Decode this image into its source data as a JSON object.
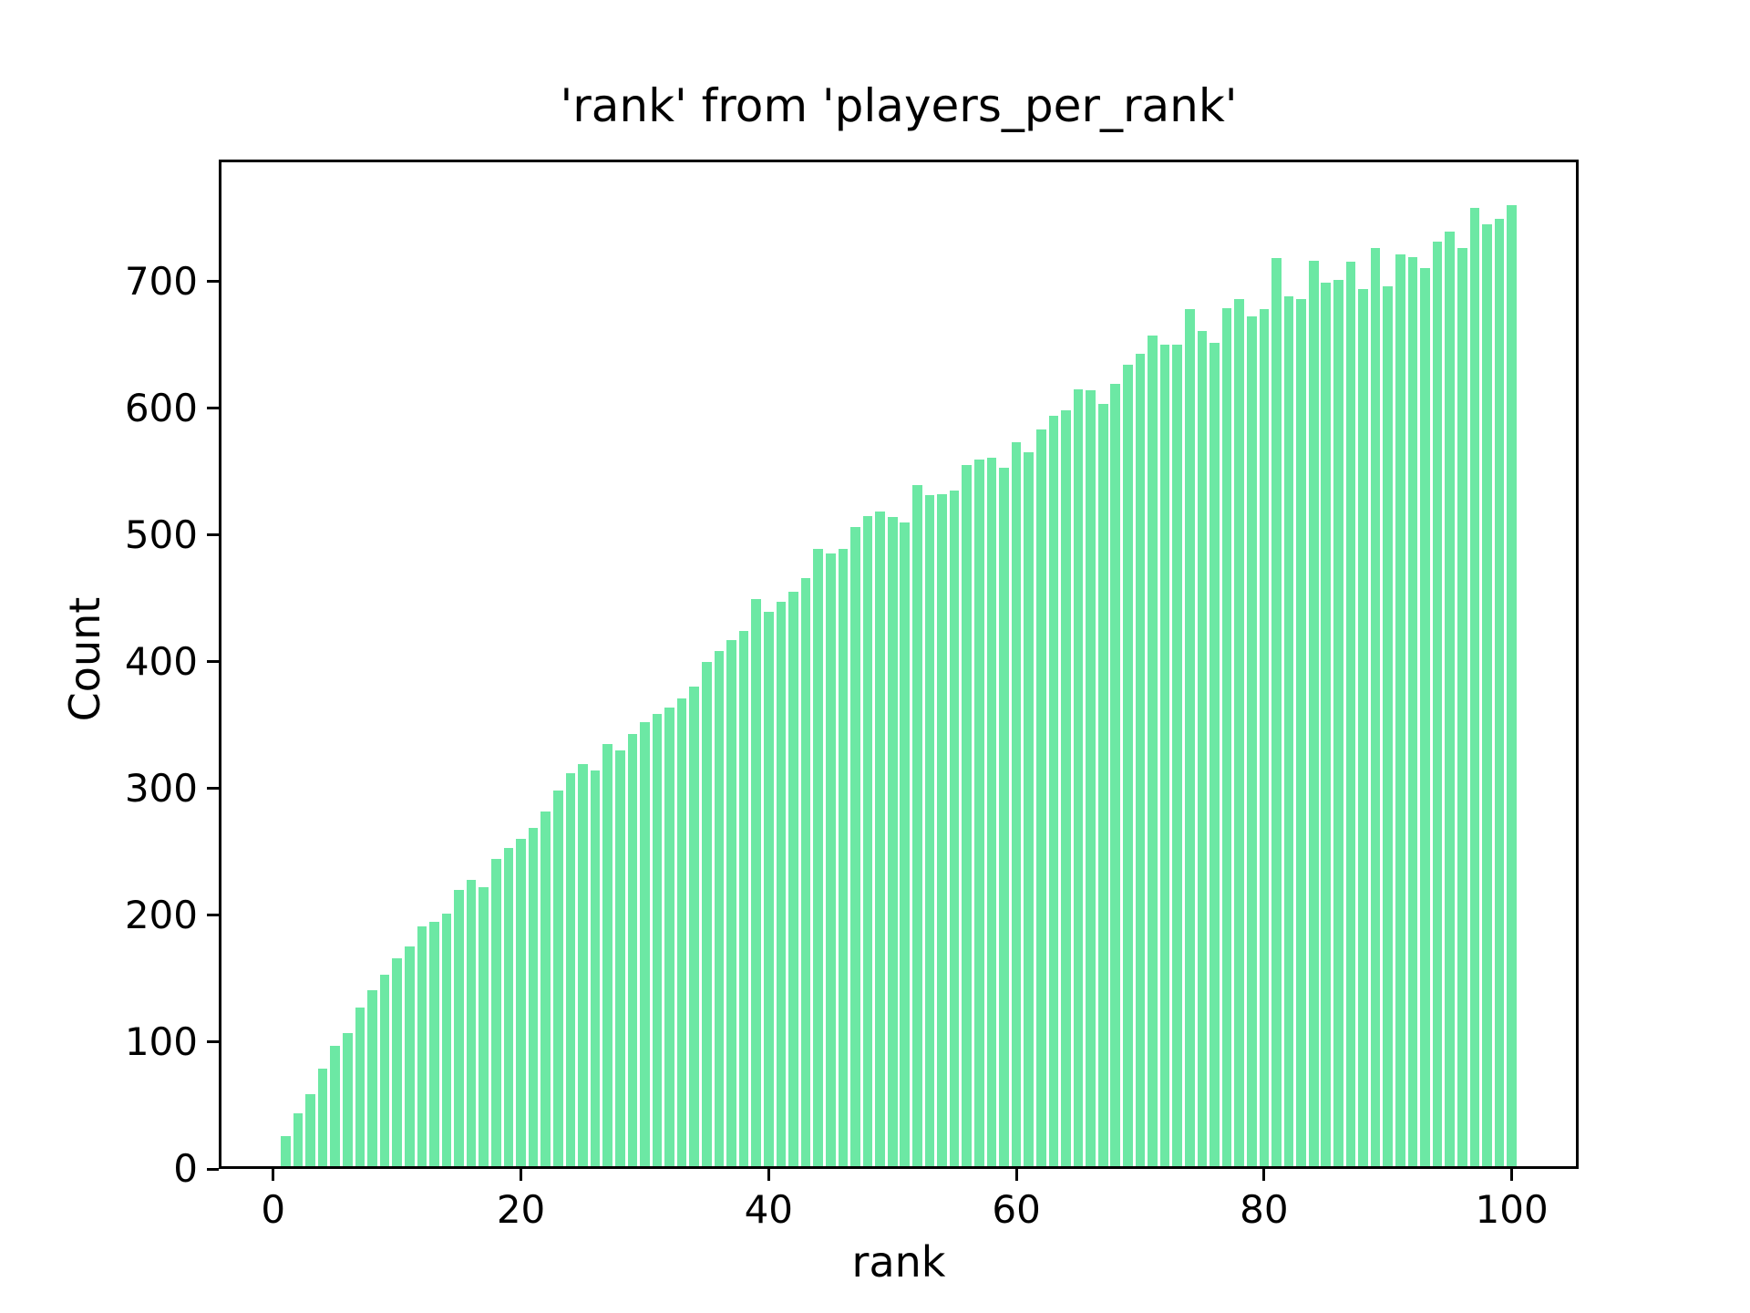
{
  "title": "'rank' from 'players_per_rank'",
  "chart_data": {
    "type": "bar",
    "title": "'rank' from 'players_per_rank'",
    "xlabel": "rank",
    "ylabel": "Count",
    "bar_color": "#6CE8A4",
    "background_color": "#ffffff",
    "grid": false,
    "legend": false,
    "xlim": [
      -4.4,
      105.4
    ],
    "ylim": [
      0,
      796
    ],
    "xticks": [
      0,
      20,
      40,
      60,
      80,
      100
    ],
    "yticks": [
      0,
      100,
      200,
      300,
      400,
      500,
      600,
      700
    ],
    "bar_width_ratio": 0.78,
    "x": [
      1,
      2,
      3,
      4,
      5,
      6,
      7,
      8,
      9,
      10,
      11,
      12,
      13,
      14,
      15,
      16,
      17,
      18,
      19,
      20,
      21,
      22,
      23,
      24,
      25,
      26,
      27,
      28,
      29,
      30,
      31,
      32,
      33,
      34,
      35,
      36,
      37,
      38,
      39,
      40,
      41,
      42,
      43,
      44,
      45,
      46,
      47,
      48,
      49,
      50,
      51,
      52,
      53,
      54,
      55,
      56,
      57,
      58,
      59,
      60,
      61,
      62,
      63,
      64,
      65,
      66,
      67,
      68,
      69,
      70,
      71,
      72,
      73,
      74,
      75,
      76,
      77,
      78,
      79,
      80,
      81,
      82,
      83,
      84,
      85,
      86,
      87,
      88,
      89,
      90,
      91,
      92,
      93,
      94,
      95,
      96,
      97,
      98,
      99,
      100
    ],
    "values": [
      24,
      42,
      57,
      77,
      95,
      105,
      125,
      139,
      151,
      164,
      173,
      189,
      193,
      199,
      218,
      226,
      220,
      242,
      251,
      258,
      267,
      280,
      296,
      310,
      317,
      312,
      333,
      328,
      341,
      350,
      357,
      362,
      369,
      378,
      398,
      406,
      415,
      422,
      447,
      437,
      445,
      453,
      464,
      487,
      483,
      487,
      504,
      513,
      516,
      512,
      508,
      537,
      529,
      530,
      533,
      553,
      557,
      559,
      551,
      571,
      563,
      581,
      592,
      596,
      613,
      612,
      601,
      617,
      632,
      641,
      655,
      648,
      648,
      676,
      659,
      649,
      677,
      684,
      670,
      676,
      716,
      686,
      684,
      714,
      697,
      699,
      713,
      692,
      724,
      694,
      719,
      717,
      708,
      729,
      737,
      724,
      756,
      743,
      747,
      758
    ]
  }
}
